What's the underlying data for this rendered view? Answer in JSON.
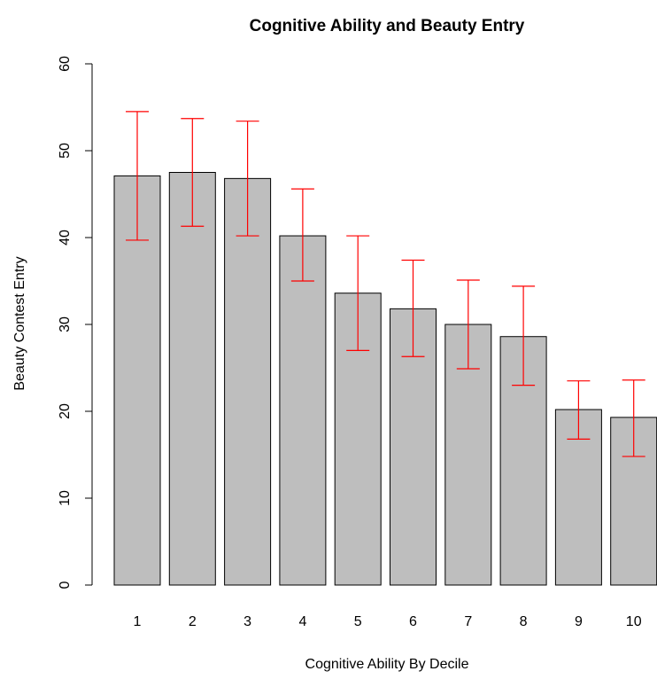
{
  "chart_data": {
    "type": "bar",
    "title": "Cognitive Ability and Beauty Entry",
    "xlabel": "Cognitive Ability By Decile",
    "ylabel": "Beauty Contest Entry",
    "categories": [
      "1",
      "2",
      "3",
      "4",
      "5",
      "6",
      "7",
      "8",
      "9",
      "10"
    ],
    "values": [
      47.1,
      47.5,
      46.8,
      40.2,
      33.6,
      31.8,
      30.0,
      28.6,
      20.2,
      19.3
    ],
    "error_upper": [
      54.5,
      53.7,
      53.4,
      45.6,
      40.2,
      37.4,
      35.1,
      34.4,
      23.5,
      23.6
    ],
    "error_lower": [
      39.7,
      41.3,
      40.2,
      35.0,
      27.0,
      26.3,
      24.9,
      23.0,
      16.8,
      14.8
    ],
    "ylim": [
      0,
      60
    ],
    "yticks": [
      "0",
      "10",
      "20",
      "30",
      "40",
      "50",
      "60"
    ],
    "grid": false,
    "colors": {
      "bar": "#bebebe",
      "error": "#ff0000"
    }
  }
}
